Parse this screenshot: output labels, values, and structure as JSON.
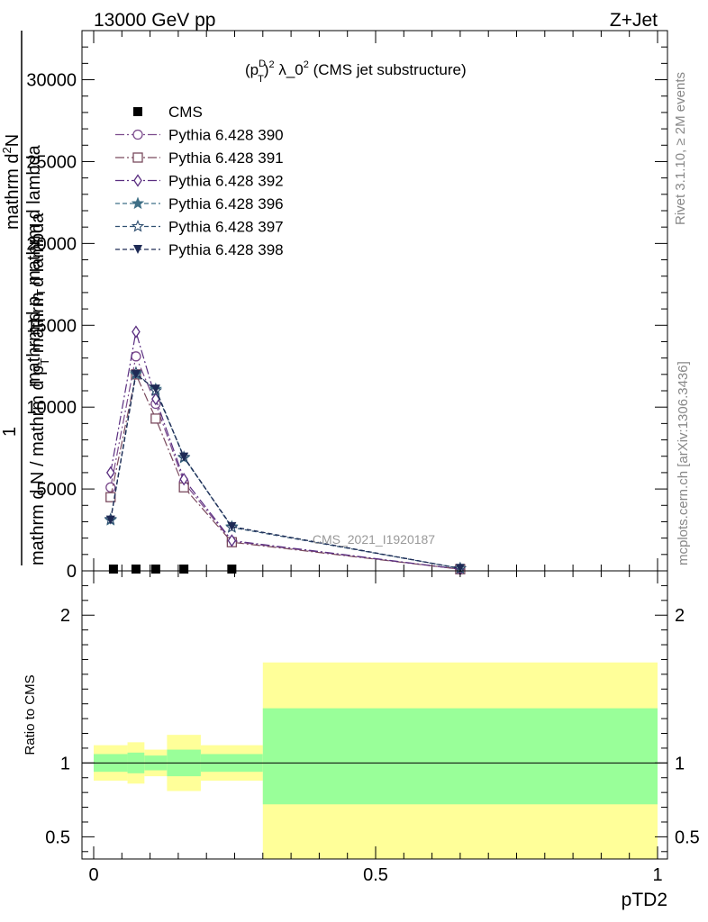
{
  "header": {
    "left": "13000 GeV pp",
    "right": "Z+Jet"
  },
  "side_labels": {
    "rivet": "Rivet 3.1.10, ≥ 2M events",
    "mcplots": "mcplots.cern.ch [arXiv:1306.3436]"
  },
  "watermark": "CMS_2021_I1920187",
  "chart_data": [
    {
      "type": "line",
      "title_parts": {
        "lead": "(p",
        "sup": "D",
        "sub": "T",
        "sup2": "2",
        "rest": " λ_0",
        "sup3": "2",
        "tail": " (CMS jet substructure)"
      },
      "ylabel": {
        "num_1": "1",
        "num_2": "mathrm d",
        "num_sup": "2",
        "num_3": "N",
        "den_1": "mathrm d N / mathrm d p",
        "den_sub": "T",
        "den_2": " mathrm d lambda",
        "frac_2": "mathrm d p",
        "frac_2_sub": "T",
        "frac_2_rest": "mathrm d lambda"
      },
      "xlim": [
        0,
        1
      ],
      "ylim": [
        0,
        33000
      ],
      "yticks": [
        0,
        5000,
        10000,
        15000,
        20000,
        25000,
        30000
      ],
      "ytick_labels": [
        "0",
        "5000",
        "10000",
        "15000",
        "20000",
        "25000",
        "30000"
      ],
      "series": [
        {
          "name": "CMS",
          "color": "#000000",
          "marker": "square-filled",
          "dash": "none",
          "x": [
            0.035,
            0.075,
            0.11,
            0.16,
            0.245,
            0.65
          ],
          "y": [
            0,
            0,
            0,
            0,
            0,
            0
          ]
        },
        {
          "name": "Pythia 6.428 390",
          "color": "#7b4a8c",
          "marker": "circle-open",
          "dash": "10,3,2,3",
          "x": [
            0.03,
            0.075,
            0.11,
            0.16,
            0.245,
            0.65
          ],
          "y": [
            5100,
            13100,
            10200,
            5400,
            1800,
            100
          ]
        },
        {
          "name": "Pythia 6.428 391",
          "color": "#7a4a5e",
          "marker": "square-open",
          "dash": "10,3,2,3",
          "x": [
            0.03,
            0.075,
            0.11,
            0.16,
            0.245,
            0.65
          ],
          "y": [
            4500,
            12000,
            9300,
            5100,
            1750,
            100
          ]
        },
        {
          "name": "Pythia 6.428 392",
          "color": "#5a2e80",
          "marker": "diamond-open",
          "dash": "10,3,2,3",
          "x": [
            0.03,
            0.075,
            0.11,
            0.16,
            0.245,
            0.65
          ],
          "y": [
            6000,
            14600,
            10500,
            5600,
            1850,
            100
          ]
        },
        {
          "name": "Pythia 6.428 396",
          "color": "#3f6f86",
          "marker": "star-filled",
          "dash": "5,3",
          "x": [
            0.03,
            0.075,
            0.11,
            0.16,
            0.245,
            0.65
          ],
          "y": [
            3100,
            12000,
            11100,
            6900,
            2700,
            150
          ]
        },
        {
          "name": "Pythia 6.428 397",
          "color": "#2f4f70",
          "marker": "star-open",
          "dash": "5,3",
          "x": [
            0.03,
            0.075,
            0.11,
            0.16,
            0.245,
            0.65
          ],
          "y": [
            3150,
            12100,
            11000,
            6950,
            2650,
            150
          ]
        },
        {
          "name": "Pythia 6.428 398",
          "color": "#1e2a55",
          "marker": "triangle-down-filled",
          "dash": "5,3",
          "x": [
            0.03,
            0.075,
            0.11,
            0.16,
            0.245,
            0.65
          ],
          "y": [
            3100,
            12000,
            11100,
            6950,
            2700,
            150
          ]
        }
      ],
      "legend_position": "top-left"
    },
    {
      "type": "area",
      "ylabel": "Ratio to CMS",
      "xlabel": "pTD2",
      "xlim": [
        0,
        1
      ],
      "ylim": [
        0.35,
        2.3
      ],
      "yticks": [
        0.5,
        1,
        2
      ],
      "ytick_labels": [
        "0.5",
        "1",
        "2"
      ],
      "xticks": [
        0,
        0.5,
        1
      ],
      "xtick_labels": [
        "0",
        "0.5",
        "1"
      ],
      "reference_line": 1,
      "bins": [
        {
          "lo": 0.0,
          "hi": 0.06,
          "green": [
            0.94,
            1.06
          ],
          "yellow": [
            0.88,
            1.12
          ]
        },
        {
          "lo": 0.06,
          "hi": 0.09,
          "green": [
            0.93,
            1.07
          ],
          "yellow": [
            0.86,
            1.14
          ]
        },
        {
          "lo": 0.09,
          "hi": 0.13,
          "green": [
            0.95,
            1.05
          ],
          "yellow": [
            0.91,
            1.09
          ]
        },
        {
          "lo": 0.13,
          "hi": 0.19,
          "green": [
            0.91,
            1.09
          ],
          "yellow": [
            0.81,
            1.19
          ]
        },
        {
          "lo": 0.19,
          "hi": 0.3,
          "green": [
            0.94,
            1.06
          ],
          "yellow": [
            0.88,
            1.12
          ]
        },
        {
          "lo": 0.3,
          "hi": 1.0,
          "green": [
            0.72,
            1.37
          ],
          "yellow": [
            0.35,
            1.68
          ]
        }
      ],
      "band_colors": {
        "green": "#99ff99",
        "yellow": "#ffff99"
      }
    }
  ]
}
